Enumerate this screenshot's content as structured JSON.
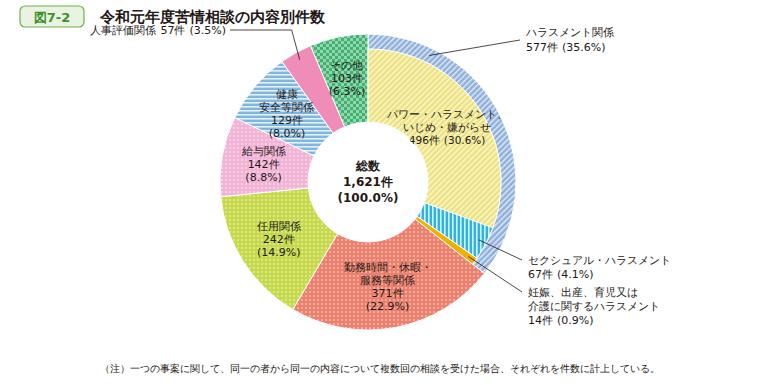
{
  "chart_data": {
    "type": "donut",
    "title": "令和元年度苦情相談の内容別件数",
    "annotations": [
      "図7-2",
      "（注）一つの事案に関して、同一の者から同一の内容について複数回の相談を受けた場合、それぞれを件数に計上している。"
    ],
    "categories": [
      "ハラスメント関係",
      "勤務時間・休暇・\n服務等関係",
      "任用関係",
      "給与関係",
      "健康\n安全等関係",
      "人事評価関係",
      "その他"
    ],
    "values": [
      577,
      371,
      242,
      142,
      129,
      57,
      103
    ],
    "value_labels": [
      "577件",
      "371件",
      "242件",
      "142件",
      "129件",
      "57件",
      "103件"
    ],
    "percents": [
      35.6,
      22.9,
      14.9,
      8.8,
      8.0,
      3.5,
      6.3
    ],
    "percent_labels": [
      "(35.6%)",
      "(22.9%)",
      "(14.9%)",
      "(8.8%)",
      "(8.0%)",
      "(3.5%)",
      "(6.3%)"
    ],
    "colors": [
      "#8fb0db",
      "#ee7f6c",
      "#c5d94a",
      "#f2b3d6",
      "#7fb6df",
      "#f08cb8",
      "#3db36f"
    ],
    "subcategories": {
      "parent": 0,
      "categories": [
        "パワー・ハラスメント、\nいじめ・嫌がらせ",
        "セクシュアル・ハラスメント",
        "妊娠、出産、育児又は\n介護に関するハラスメント"
      ],
      "values": [
        496,
        67,
        14
      ],
      "value_labels": [
        "496件",
        "67件",
        "14件"
      ],
      "percents": [
        30.6,
        4.1,
        0.9
      ],
      "percent_labels": [
        "(30.6%)",
        "(4.1%)",
        "(0.9%)"
      ],
      "colors": [
        "#ede27a",
        "#2fb3e3",
        "#f0b000"
      ]
    },
    "total": {
      "label": "総数",
      "value": 1621,
      "value_label": "1,621件",
      "percent": 100.0,
      "percent_label": "(100.0%)"
    }
  }
}
